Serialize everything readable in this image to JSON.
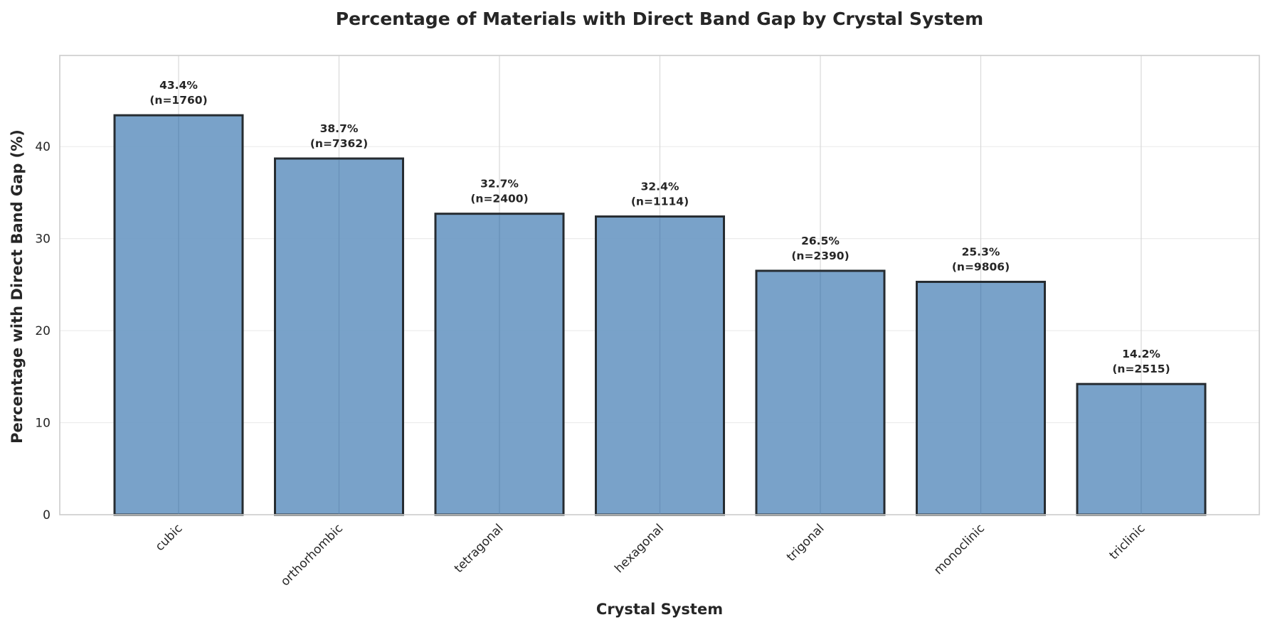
{
  "chart_data": {
    "type": "bar",
    "title": "Percentage of Materials with Direct Band Gap by Crystal System",
    "xlabel": "Crystal System",
    "ylabel": "Percentage with Direct Band Gap (%)",
    "categories": [
      "cubic",
      "orthorhombic",
      "tetragonal",
      "hexagonal",
      "trigonal",
      "monoclinic",
      "triclinic"
    ],
    "values": [
      43.4,
      38.7,
      32.7,
      32.4,
      26.5,
      25.3,
      14.2
    ],
    "counts": [
      1760,
      7362,
      2400,
      1114,
      2390,
      9806,
      2515
    ],
    "value_labels": [
      "43.4%",
      "38.7%",
      "32.7%",
      "32.4%",
      "26.5%",
      "25.3%",
      "14.2%"
    ],
    "count_labels": [
      "(n=1760)",
      "(n=7362)",
      "(n=2400)",
      "(n=1114)",
      "(n=2390)",
      "(n=9806)",
      "(n=2515)"
    ],
    "ylim": [
      0,
      49.9
    ],
    "yticks": [
      0,
      10,
      20,
      30,
      40
    ],
    "grid": true,
    "bar_color": "#6f9bc5",
    "bar_edge_color": "#262c31"
  }
}
